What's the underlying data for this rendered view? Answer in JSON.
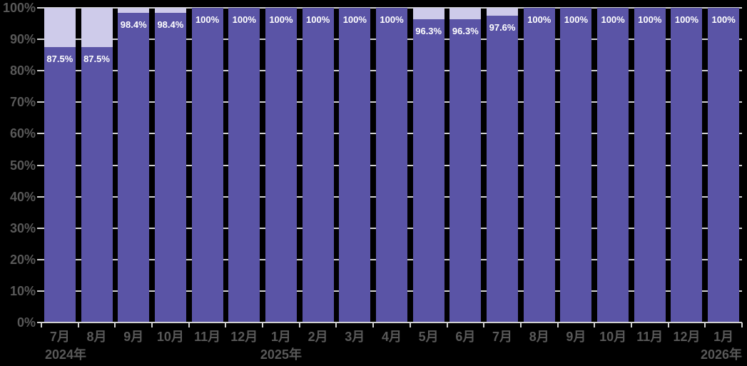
{
  "chart_data": {
    "type": "bar",
    "stacked_to": 100,
    "title": "",
    "xlabel": "",
    "ylabel": "",
    "ylim": [
      0,
      100
    ],
    "grid": true,
    "legend": "none",
    "categories": [
      "7月",
      "8月",
      "9月",
      "10月",
      "11月",
      "12月",
      "1月",
      "2月",
      "3月",
      "4月",
      "5月",
      "6月",
      "7月",
      "8月",
      "9月",
      "10月",
      "11月",
      "12月",
      "1月"
    ],
    "values": [
      87.5,
      87.5,
      98.4,
      98.4,
      100,
      100,
      100,
      100,
      100,
      100,
      96.3,
      96.3,
      97.6,
      100,
      100,
      100,
      100,
      100,
      100
    ],
    "value_labels": [
      "87.5%",
      "87.5%",
      "98.4%",
      "98.4%",
      "100%",
      "100%",
      "100%",
      "100%",
      "100%",
      "100%",
      "96.3%",
      "96.3%",
      "97.6%",
      "100%",
      "100%",
      "100%",
      "100%",
      "100%",
      "100%"
    ],
    "y_tick_labels": [
      "0%",
      "10%",
      "20%",
      "30%",
      "40%",
      "50%",
      "60%",
      "70%",
      "80%",
      "90%",
      "100%"
    ],
    "year_labels": [
      {
        "text": "2024年",
        "category_index": 0,
        "align": "left"
      },
      {
        "text": "2025年",
        "category_index": 6,
        "align": "center"
      },
      {
        "text": "2026年",
        "category_index": 18,
        "align": "right"
      }
    ],
    "colors": {
      "background": "#000000",
      "bar_value_segment": "#5A54A6",
      "bar_remainder_segment": "#CECBEA",
      "bar_value_label_text": "#FFFFFF",
      "axis_text": "#595959",
      "gridline": "#D0D0D0",
      "axis_line": "#D0D0D0"
    }
  }
}
